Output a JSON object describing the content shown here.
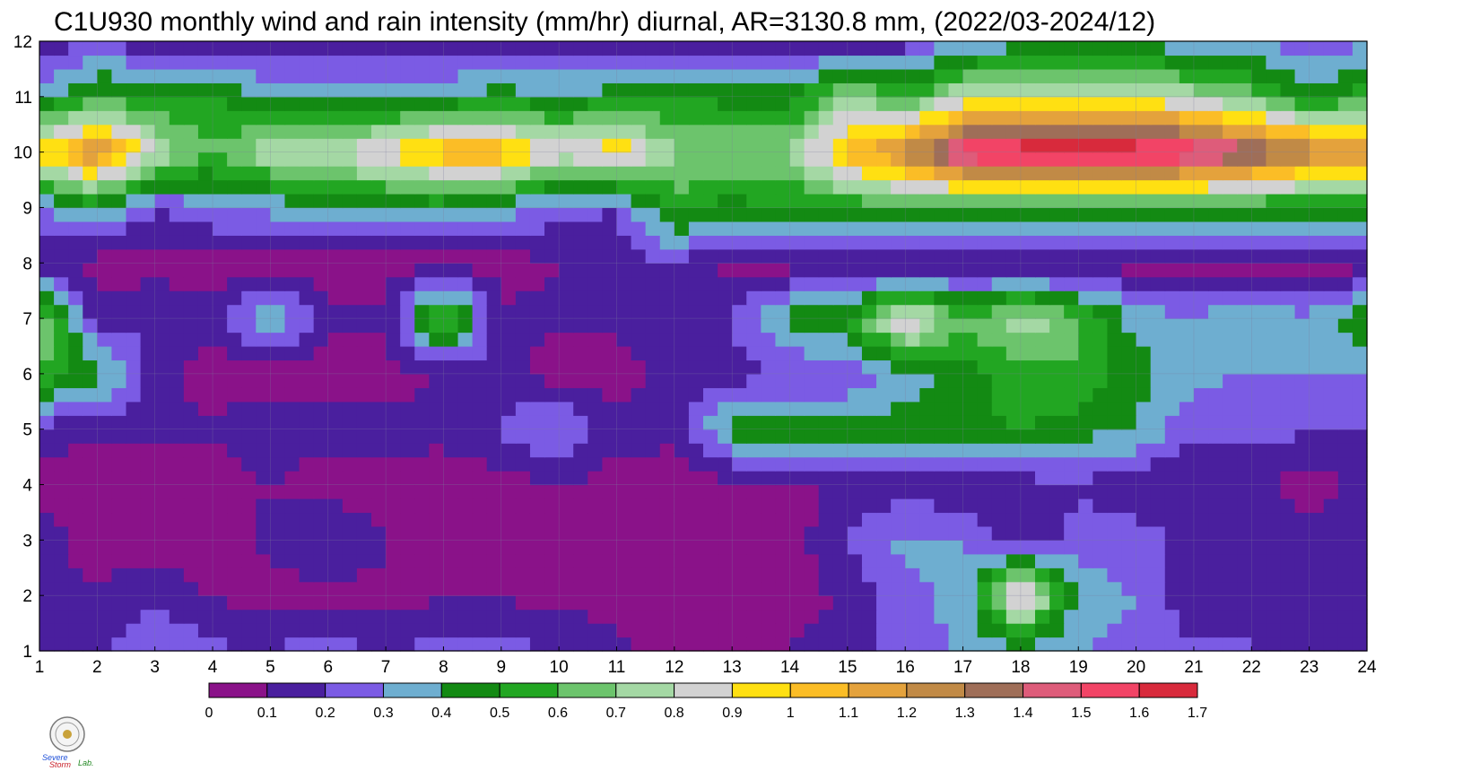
{
  "chart_data": {
    "type": "heatmap",
    "title": "C1U930 monthly wind and rain intensity (mm/hr) diurnal, AR=3130.8 mm, (2022/03-2024/12)",
    "xlabel": "",
    "ylabel": "",
    "xlim": [
      1,
      24
    ],
    "ylim": [
      1,
      12
    ],
    "x_ticks": [
      "1",
      "2",
      "3",
      "4",
      "5",
      "6",
      "7",
      "8",
      "9",
      "10",
      "11",
      "12",
      "13",
      "14",
      "15",
      "16",
      "17",
      "18",
      "19",
      "20",
      "21",
      "22",
      "23",
      "24"
    ],
    "y_ticks": [
      "1",
      "2",
      "3",
      "4",
      "5",
      "6",
      "7",
      "8",
      "9",
      "10",
      "11",
      "12"
    ],
    "grid": true,
    "colorbar": {
      "levels": [
        "0",
        "0.1",
        "0.2",
        "0.3",
        "0.4",
        "0.5",
        "0.6",
        "0.7",
        "0.8",
        "0.9",
        "1",
        "1.1",
        "1.2",
        "1.3",
        "1.4",
        "1.5",
        "1.6",
        "1.7"
      ],
      "colors": [
        "#8a1289",
        "#4a1f9e",
        "#7b5be4",
        "#6eaed0",
        "#138a13",
        "#22a622",
        "#6cc46c",
        "#a4d8a4",
        "#d2d2d2",
        "#ffe012",
        "#fbbd26",
        "#e4a23c",
        "#c18a46",
        "#9f6e58",
        "#de5c7a",
        "#f24466",
        "#d82a3c"
      ]
    },
    "z_hours_1_to_24_by_month_1_to_12": [
      [
        0.18,
        0.18,
        0.32,
        0.22,
        0.2,
        0.28,
        0.18,
        0.25,
        0.26,
        0.15,
        0.12,
        0.05,
        0.1,
        0.1,
        0.16,
        0.25,
        0.32,
        0.35,
        0.32,
        0.25,
        0.22,
        0.2,
        0.15,
        0.12
      ],
      [
        0.12,
        0.12,
        0.15,
        0.1,
        0.05,
        0.06,
        0.08,
        0.08,
        0.08,
        0.08,
        0.08,
        0.05,
        0.06,
        0.05,
        0.12,
        0.28,
        0.32,
        1.0,
        0.35,
        0.3,
        0.12,
        0.2,
        0.12,
        0.12
      ],
      [
        0.15,
        0.05,
        0.05,
        0.05,
        0.12,
        0.22,
        0.1,
        0.05,
        0.05,
        0.05,
        0.05,
        0.05,
        0.05,
        0.05,
        0.22,
        0.32,
        0.3,
        0.08,
        0.25,
        0.25,
        0.15,
        0.18,
        0.15,
        0.15
      ],
      [
        0.04,
        0.04,
        0.05,
        0.05,
        0.1,
        0.05,
        0.05,
        0.05,
        0.05,
        0.1,
        0.05,
        0.05,
        0.06,
        0.05,
        0.12,
        0.15,
        0.12,
        0.15,
        0.18,
        0.12,
        0.12,
        0.12,
        0.05,
        0.12
      ],
      [
        0.15,
        0.12,
        0.12,
        0.12,
        0.15,
        0.15,
        0.15,
        0.12,
        0.22,
        0.32,
        0.15,
        0.12,
        0.45,
        0.45,
        0.45,
        0.45,
        0.48,
        0.5,
        0.45,
        0.4,
        0.22,
        0.22,
        0.22,
        0.2
      ],
      [
        0.6,
        0.45,
        0.15,
        0.05,
        0.05,
        0.05,
        0.05,
        0.12,
        0.15,
        0.05,
        0.05,
        0.15,
        0.15,
        0.2,
        0.2,
        0.35,
        0.45,
        0.55,
        0.58,
        0.45,
        0.32,
        0.3,
        0.3,
        0.3
      ],
      [
        0.7,
        0.15,
        0.2,
        0.15,
        0.4,
        0.12,
        0.12,
        0.65,
        0.12,
        0.12,
        0.12,
        0.15,
        0.2,
        0.45,
        0.5,
        0.95,
        0.6,
        0.8,
        0.62,
        0.35,
        0.32,
        0.38,
        0.32,
        0.52
      ],
      [
        0.12,
        0.05,
        0.05,
        0.05,
        0.05,
        0.05,
        0.05,
        0.05,
        0.05,
        0.1,
        0.12,
        0.2,
        0.05,
        0.05,
        0.05,
        0.05,
        0.05,
        0.05,
        0.05,
        0.05,
        0.05,
        0.05,
        0.05,
        0.05
      ],
      [
        0.28,
        0.42,
        0.2,
        0.3,
        0.32,
        0.45,
        0.42,
        0.42,
        0.35,
        0.25,
        0.2,
        0.55,
        0.45,
        0.5,
        0.52,
        0.55,
        0.52,
        0.52,
        0.52,
        0.5,
        0.5,
        0.5,
        0.45,
        0.48
      ],
      [
        0.95,
        1.25,
        0.8,
        0.6,
        0.78,
        0.82,
        0.9,
        1.1,
        1.1,
        0.85,
        1.0,
        0.72,
        0.72,
        0.72,
        1.05,
        1.25,
        1.6,
        1.72,
        1.72,
        1.72,
        1.6,
        1.45,
        1.3,
        1.2
      ],
      [
        0.35,
        0.55,
        0.5,
        0.55,
        0.35,
        0.35,
        0.4,
        0.4,
        0.45,
        0.42,
        0.45,
        0.5,
        0.45,
        0.45,
        0.75,
        0.55,
        0.8,
        0.85,
        0.85,
        0.85,
        0.75,
        0.65,
        0.45,
        0.55
      ],
      [
        0.12,
        0.2,
        0.1,
        0.1,
        0.12,
        0.12,
        0.1,
        0.1,
        0.12,
        0.1,
        0.12,
        0.1,
        0.1,
        0.12,
        0.12,
        0.15,
        0.3,
        0.35,
        0.4,
        0.38,
        0.28,
        0.3,
        0.2,
        0.28
      ]
    ]
  },
  "logo": {
    "text_severe": "Severe",
    "text_storm": "Storm",
    "text_lab": "Lab."
  }
}
